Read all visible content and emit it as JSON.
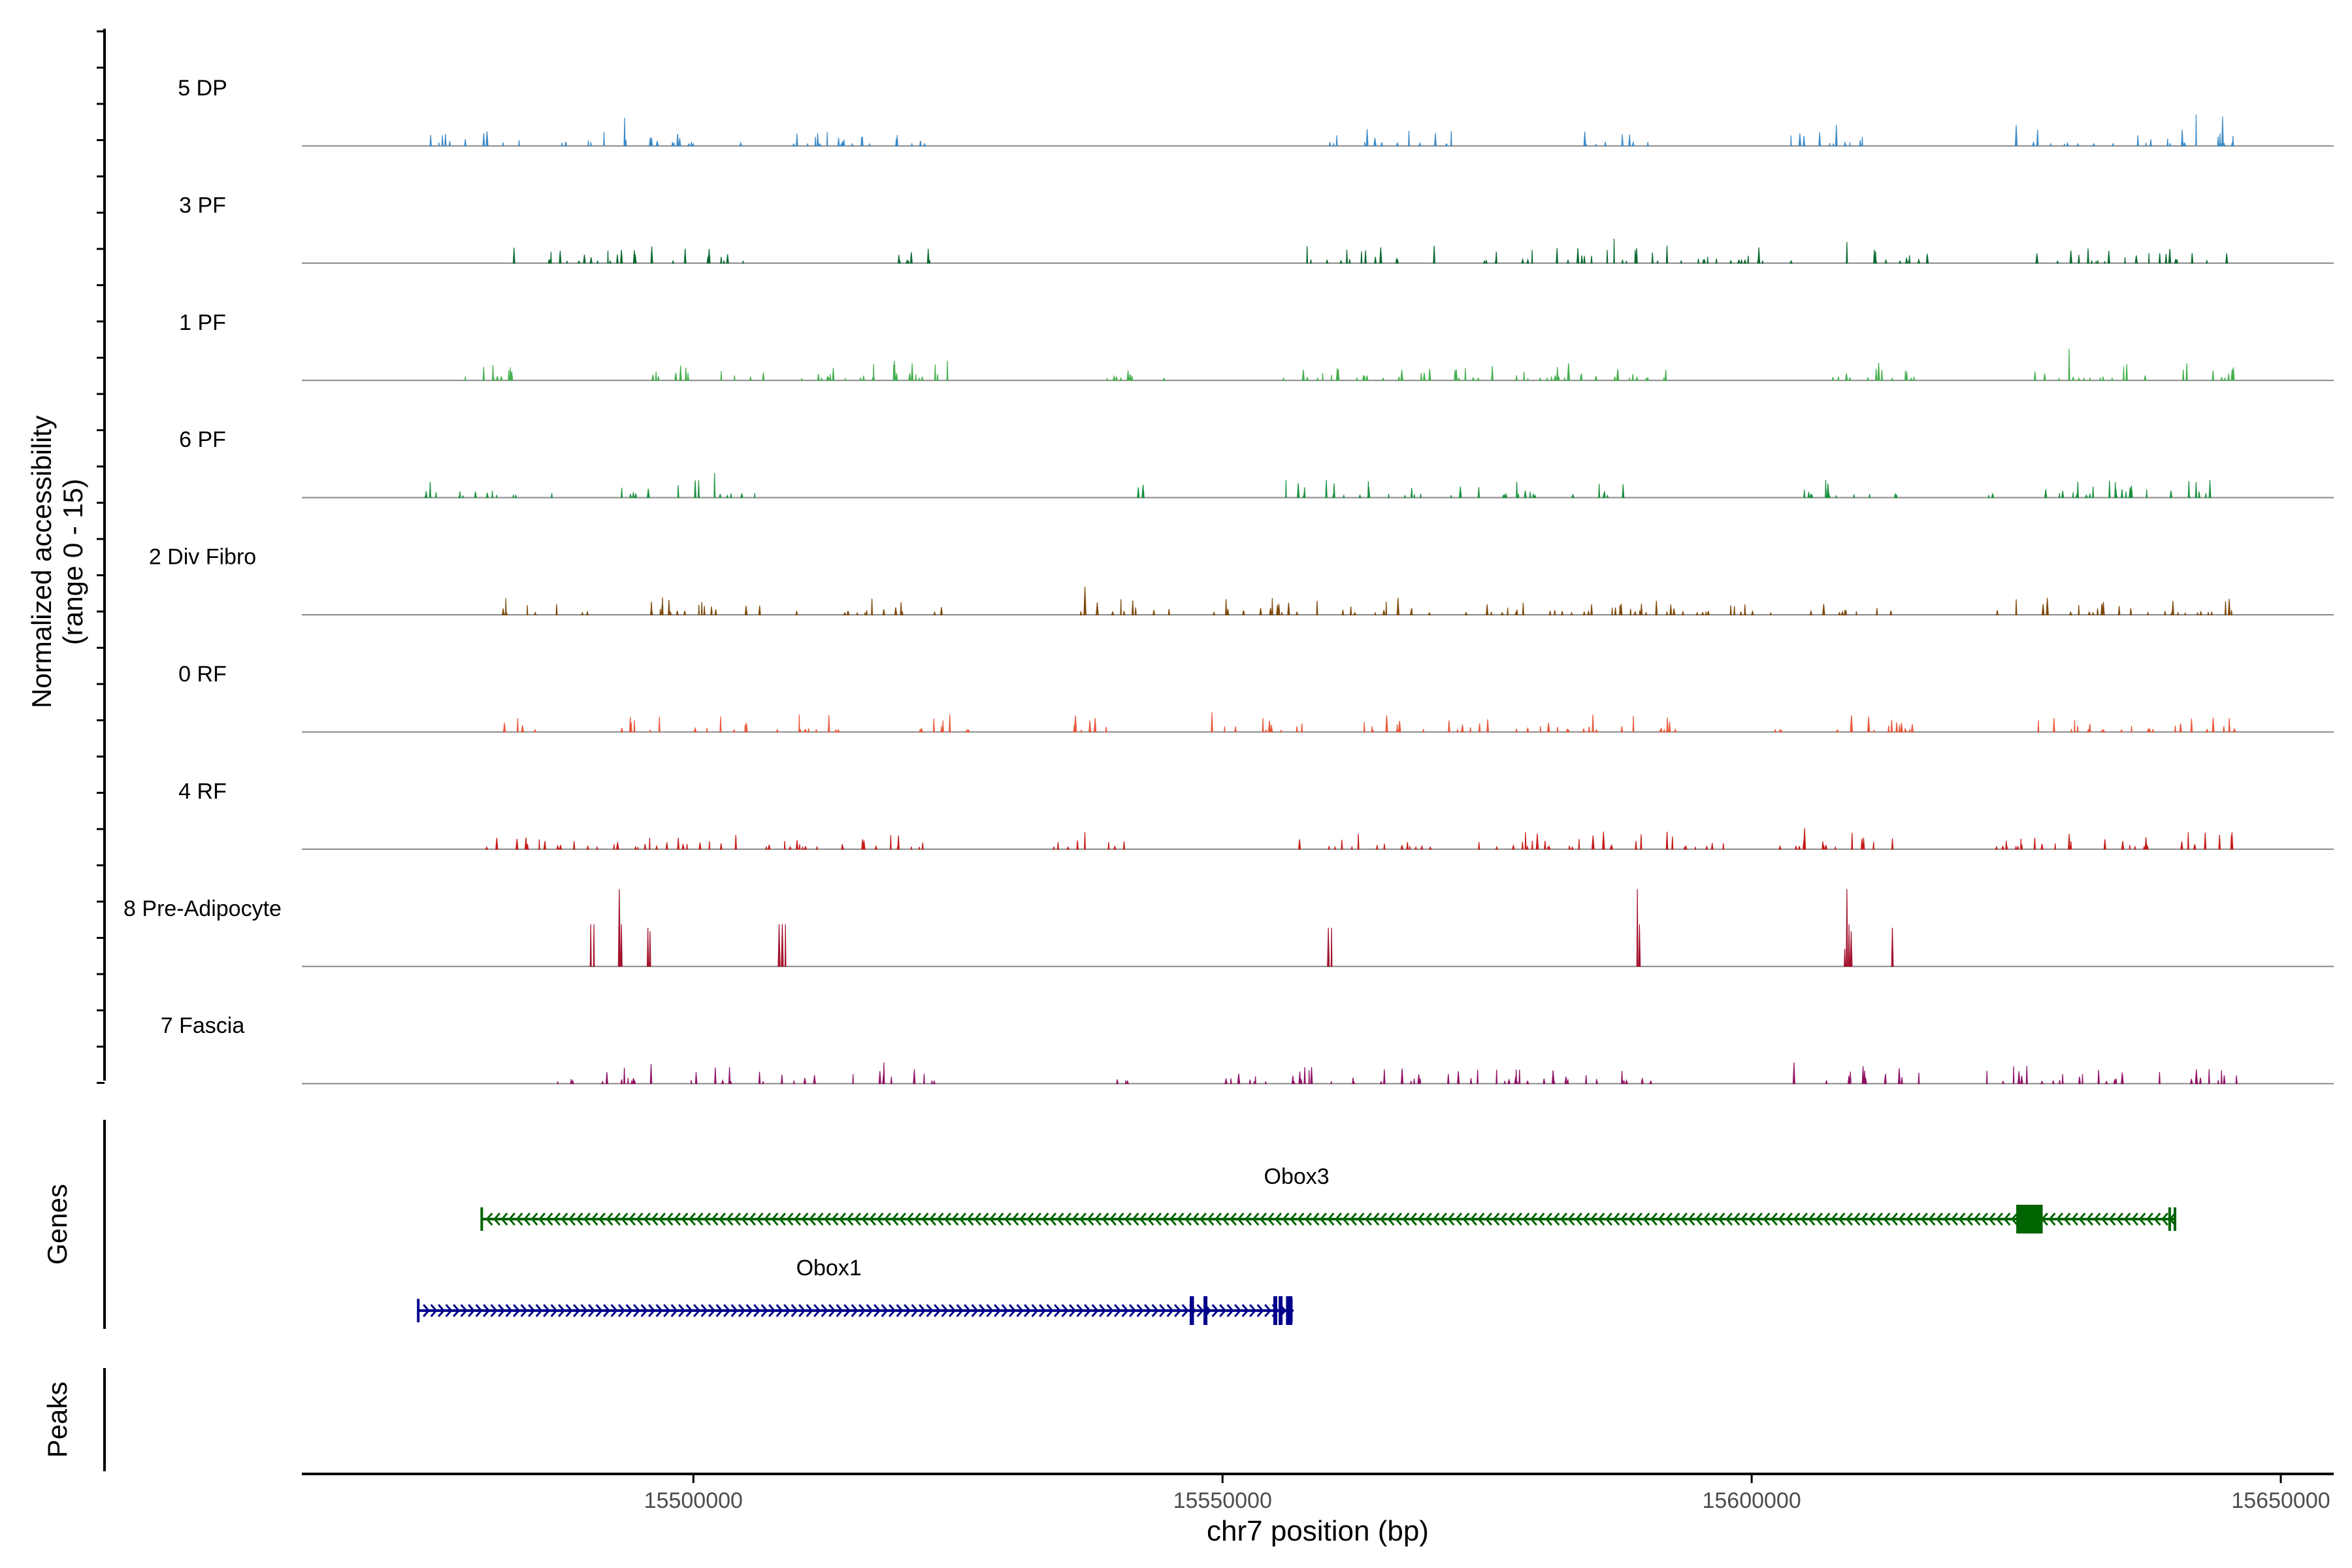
{
  "chart_data": {
    "type": "coverage",
    "y_axis_label_line1": "Normalized accessibility",
    "y_axis_label_line2": "(range 0 - 15)",
    "ylim": [
      0,
      15
    ],
    "xlabel": "chr7 position (bp)",
    "xlim": [
      15463000,
      15655000
    ],
    "x_ticks": [
      {
        "value": 15500000,
        "label": "15500000"
      },
      {
        "value": 15550000,
        "label": "15550000"
      },
      {
        "value": 15600000,
        "label": "15600000"
      },
      {
        "value": 15650000,
        "label": "15650000"
      }
    ],
    "tracks": [
      {
        "name": "5 DP",
        "color": "#3E8BC7",
        "seed": 11,
        "data_range": [
          15474000,
          15646000
        ],
        "regions": [
          [
            15474000,
            15484000
          ],
          [
            15487000,
            15502000
          ],
          [
            15503000,
            15522000
          ],
          [
            15560000,
            15572000
          ],
          [
            15583000,
            15591000
          ],
          [
            15603000,
            15612000
          ],
          [
            15626000,
            15646000
          ]
        ],
        "peaks": [
          [
            15493500,
            4
          ],
          [
            15608000,
            3
          ],
          [
            15625000,
            3
          ],
          [
            15642000,
            4.5
          ],
          [
            15644500,
            4.2
          ]
        ]
      },
      {
        "name": "3 PF",
        "color": "#0B6A31",
        "seed": 23,
        "data_range": [
          15481000,
          15646000
        ],
        "regions": [
          [
            15481000,
            15497000
          ],
          [
            15498000,
            15505000
          ],
          [
            15517000,
            15523000
          ],
          [
            15557000,
            15570000
          ],
          [
            15574000,
            15584000
          ],
          [
            15582000,
            15606000
          ],
          [
            15611000,
            15621000
          ],
          [
            15626000,
            15646000
          ]
        ],
        "peaks": [
          [
            15587000,
            3.5
          ],
          [
            15592000,
            2.5
          ],
          [
            15609000,
            3
          ],
          [
            15570000,
            2.5
          ]
        ]
      },
      {
        "name": "1 PF",
        "color": "#47B04F",
        "seed": 37,
        "data_range": [
          15474000,
          15646000
        ],
        "regions": [
          [
            15474000,
            15483000
          ],
          [
            15496000,
            15519000
          ],
          [
            15517000,
            15525000
          ],
          [
            15538000,
            15545000
          ],
          [
            15555000,
            15588000
          ],
          [
            15580000,
            15593000
          ],
          [
            15605000,
            15616000
          ],
          [
            15626000,
            15646000
          ]
        ],
        "peaks": [
          [
            15519000,
            2.8
          ],
          [
            15524000,
            2.8
          ],
          [
            15630000,
            4.5
          ],
          [
            15612000,
            2.5
          ]
        ]
      },
      {
        "name": "6 PF",
        "color": "#1A9140",
        "seed": 53,
        "data_range": [
          15474000,
          15646000
        ],
        "regions": [
          [
            15474000,
            15487000
          ],
          [
            15493000,
            15506000
          ],
          [
            15542000,
            15542600
          ],
          [
            15556000,
            15568000
          ],
          [
            15568000,
            15589000
          ],
          [
            15604000,
            15614000
          ],
          [
            15622000,
            15645000
          ]
        ],
        "peaks": [
          [
            15502000,
            3.5
          ],
          [
            15556000,
            2.5
          ],
          [
            15607000,
            2.5
          ],
          [
            15642000,
            2.2
          ]
        ]
      },
      {
        "name": "2 Div Fibro",
        "color": "#7F4A0B",
        "seed": 71,
        "data_range": [
          15482000,
          15646000
        ],
        "regions": [
          [
            15482000,
            15490000
          ],
          [
            15493000,
            15510000
          ],
          [
            15512000,
            15524000
          ],
          [
            15536000,
            15545000
          ],
          [
            15549000,
            15555000
          ],
          [
            15555000,
            15590000
          ],
          [
            15588000,
            15616000
          ],
          [
            15622000,
            15646000
          ]
        ],
        "peaks": [
          [
            15537000,
            4
          ],
          [
            15591000,
            2
          ],
          [
            15625000,
            2.2
          ]
        ]
      },
      {
        "name": "0 RF",
        "color": "#E8583A",
        "seed": 89,
        "data_range": [
          15482000,
          15646000
        ],
        "regions": [
          [
            15482000,
            15486000
          ],
          [
            15493000,
            15514000
          ],
          [
            15519000,
            15526000
          ],
          [
            15534000,
            15540000
          ],
          [
            15548000,
            15558000
          ],
          [
            15563000,
            15583000
          ],
          [
            15583000,
            15593000
          ],
          [
            15602000,
            15616000
          ],
          [
            15626000,
            15646000
          ]
        ],
        "peaks": [
          [
            15510000,
            2.5
          ],
          [
            15549000,
            2.8
          ],
          [
            15585000,
            2.5
          ]
        ]
      },
      {
        "name": "4 RF",
        "color": "#C51C19",
        "seed": 97,
        "data_range": [
          15480000,
          15646000
        ],
        "regions": [
          [
            15480000,
            15498000
          ],
          [
            15496000,
            15512000
          ],
          [
            15514000,
            15525000
          ],
          [
            15534000,
            15541000
          ],
          [
            15557000,
            15570000
          ],
          [
            15574000,
            15598000
          ],
          [
            15602000,
            15614000
          ],
          [
            15622000,
            15646000
          ]
        ],
        "peaks": [
          [
            15586000,
            2.5
          ],
          [
            15605000,
            3
          ],
          [
            15630000,
            2.2
          ]
        ]
      },
      {
        "name": "8 Pre-Adipocyte",
        "color": "#A3122D",
        "seed": 101,
        "data_range": [
          15474000,
          15646000
        ],
        "regions": [],
        "peaks": [
          [
            15490300,
            6
          ],
          [
            15490600,
            6
          ],
          [
            15493000,
            11
          ],
          [
            15493200,
            6
          ],
          [
            15495700,
            5.5
          ],
          [
            15495900,
            5
          ],
          [
            15508100,
            6
          ],
          [
            15508400,
            6
          ],
          [
            15508700,
            6
          ],
          [
            15560000,
            5.5
          ],
          [
            15560300,
            5.5
          ],
          [
            15589200,
            11
          ],
          [
            15589400,
            6
          ],
          [
            15609000,
            11
          ],
          [
            15609200,
            6
          ],
          [
            15609400,
            5
          ],
          [
            15608800,
            2.5
          ],
          [
            15613300,
            5.5
          ]
        ]
      },
      {
        "name": "7 Fascia",
        "color": "#8E1265",
        "seed": 113,
        "data_range": [
          15487000,
          15646000
        ],
        "regions": [
          [
            15487000,
            15497000
          ],
          [
            15499000,
            15512000
          ],
          [
            15515000,
            15523000
          ],
          [
            15539000,
            15541500
          ],
          [
            15549000,
            15555000
          ],
          [
            15556000,
            15579000
          ],
          [
            15576000,
            15591000
          ],
          [
            15605000,
            15616000
          ],
          [
            15622000,
            15646000
          ]
        ],
        "peaks": [
          [
            15496000,
            2.8
          ],
          [
            15518000,
            3
          ],
          [
            15604000,
            3
          ],
          [
            15626000,
            2.5
          ]
        ]
      }
    ],
    "genes_label": "Genes",
    "genes": [
      {
        "name": "Obox3",
        "strand": "-",
        "color": "#006400",
        "start": 15480000,
        "end": 15640000,
        "exons": [
          [
            15625000,
            15627500
          ]
        ],
        "tick_at": 15639500
      },
      {
        "name": "Obox1",
        "strand": "+",
        "color": "#00008B",
        "start": 15474000,
        "end": 15556500,
        "exons": [
          [
            15546900,
            15547300
          ],
          [
            15548200,
            15548500
          ],
          [
            15554800,
            15555100
          ],
          [
            15555300,
            15555600
          ],
          [
            15556000,
            15556600
          ]
        ],
        "tick_at": null
      }
    ],
    "peaks_label": "Peaks",
    "colors": {
      "baseline": "#888888",
      "axis": "#000000",
      "tick_text": "#4D4D4D"
    }
  }
}
